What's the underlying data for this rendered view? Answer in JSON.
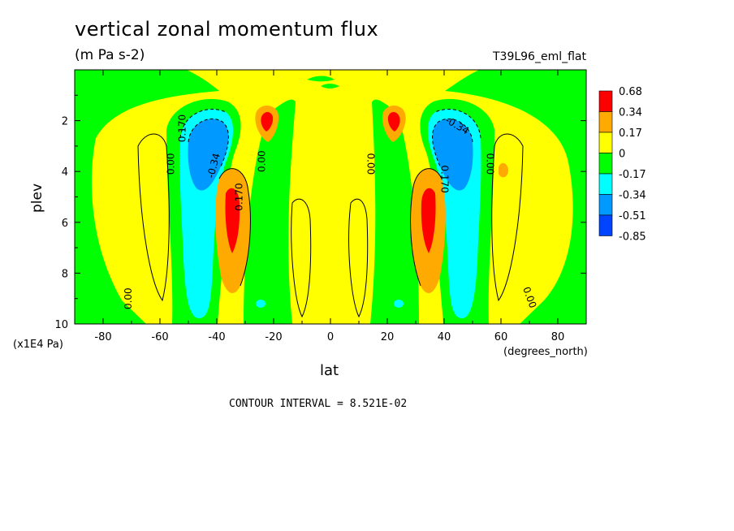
{
  "chart_data": {
    "type": "heatmap",
    "title": "vertical zonal momentum flux",
    "units": "(m Pa s-2)",
    "run_label": "T39L96_eml_flat",
    "xlabel": "lat",
    "xunits": "(degrees_north)",
    "ylabel": "plev",
    "yunits": "(x1E4 Pa)",
    "xlim": [
      -90,
      90
    ],
    "ylim": [
      10,
      0
    ],
    "x_ticks": [
      "-80",
      "-60",
      "-40",
      "-20",
      "0",
      "20",
      "40",
      "60",
      "80"
    ],
    "y_ticks": [
      "2",
      "4",
      "6",
      "8",
      "10"
    ],
    "colorbar_levels": [
      "0.68",
      "0.34",
      "0.17",
      "0",
      "-0.17",
      "-0.34",
      "-0.51",
      "-0.85"
    ],
    "colorbar_colors": [
      "#ff0000",
      "#ffaa00",
      "#ffff00",
      "#00ff00",
      "#00ffff",
      "#0099ff",
      "#0044ff"
    ],
    "contour_labels": [
      "0.00",
      "0.00",
      "0.00",
      "0.00",
      "0.00",
      "0.00",
      "0.170",
      "-0.34",
      "0.170",
      "-0.34",
      "0.170"
    ],
    "contour_interval_text": "CONTOUR INTERVAL = 8.521E-02",
    "features": [
      {
        "name": "SH negative core",
        "lat": -42,
        "plev": 2.6,
        "value_band": "-0.51 to -0.85"
      },
      {
        "name": "SH positive core",
        "lat": -37,
        "plev": 5.8,
        "value_band": "0.34 to 0.68"
      },
      {
        "name": "SH upper positive",
        "lat": -24,
        "plev": 2.2,
        "value_band": "0.34 to 0.68"
      },
      {
        "name": "NH negative core",
        "lat": 42,
        "plev": 2.6,
        "value_band": "-0.51 to -0.85"
      },
      {
        "name": "NH positive core",
        "lat": 37,
        "plev": 5.8,
        "value_band": "0.34 to 0.68"
      },
      {
        "name": "NH upper positive",
        "lat": 24,
        "plev": 2.2,
        "value_band": "0.34 to 0.68"
      }
    ]
  }
}
